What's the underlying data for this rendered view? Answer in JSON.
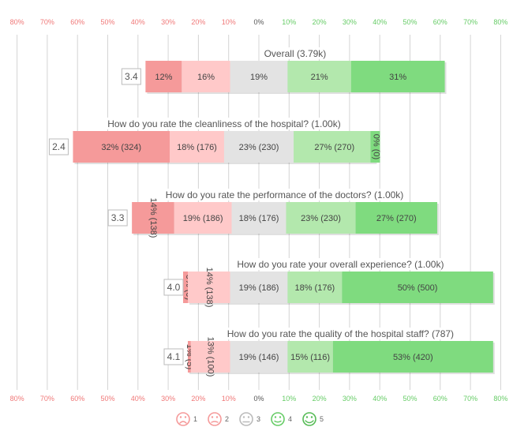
{
  "chart_data": {
    "type": "bar",
    "subtype": "diverging-stacked-horizontal",
    "x_axis": {
      "range": [
        -80,
        80
      ],
      "unit": "%",
      "tick_values": [
        -80,
        -70,
        -60,
        -50,
        -40,
        -30,
        -20,
        -10,
        0,
        10,
        20,
        30,
        40,
        50,
        60,
        70,
        80
      ],
      "tick_labels": [
        "80%",
        "70%",
        "60%",
        "50%",
        "40%",
        "30%",
        "20%",
        "10%",
        "0%",
        "10%",
        "20%",
        "30%",
        "40%",
        "50%",
        "60%",
        "70%",
        "80%"
      ]
    },
    "grid": true,
    "legend_placement": "bottom-center",
    "categories": [
      "1",
      "2",
      "3",
      "4",
      "5"
    ],
    "colors": {
      "1": "#f59a9a",
      "2": "#ffc9c9",
      "3": "#e3e3e3",
      "4": "#b3e8ad",
      "5": "#7fdb7f",
      "negative_tick": "#f07878",
      "positive_tick": "#66cc66",
      "neutral_tick": "#555555"
    },
    "questions": [
      {
        "title": "Overall (3.79k)",
        "score": "3.4",
        "values": [
          12,
          16,
          19,
          21,
          31
        ],
        "labels": [
          "12%",
          "16%",
          "19%",
          "21%",
          "31%"
        ]
      },
      {
        "title": "How do you rate the cleanliness of the hospital? (1.00k)",
        "score": "2.4",
        "values": [
          32,
          18,
          23,
          27,
          0
        ],
        "labels": [
          "32% (324)",
          "18% (176)",
          "23% (230)",
          "27% (270)",
          "0% (0)"
        ]
      },
      {
        "title": "How do you rate the performance of the doctors? (1.00k)",
        "score": "3.3",
        "values": [
          14,
          19,
          18,
          23,
          27
        ],
        "labels": [
          "14% (138)",
          "19% (186)",
          "18% (176)",
          "23% (230)",
          "27% (270)"
        ]
      },
      {
        "title": "How do you rate your overall experience? (1.00k)",
        "score": "4.0",
        "values": [
          0,
          14,
          19,
          18,
          50
        ],
        "labels": [
          "0% (0)",
          "14% (138)",
          "19% (186)",
          "18% (176)",
          "50% (500)"
        ]
      },
      {
        "title": "How do you rate the quality of the hospital staff? (787)",
        "score": "4.1",
        "values": [
          1,
          13,
          19,
          15,
          53
        ],
        "labels": [
          "1% (5)",
          "13% (100)",
          "19% (146)",
          "15% (116)",
          "53% (420)"
        ]
      }
    ],
    "legend": [
      {
        "label": "1",
        "icon": "very-sad-face-icon"
      },
      {
        "label": "2",
        "icon": "sad-face-icon"
      },
      {
        "label": "3",
        "icon": "neutral-face-icon"
      },
      {
        "label": "4",
        "icon": "smile-face-icon"
      },
      {
        "label": "5",
        "icon": "happy-face-icon"
      }
    ]
  }
}
